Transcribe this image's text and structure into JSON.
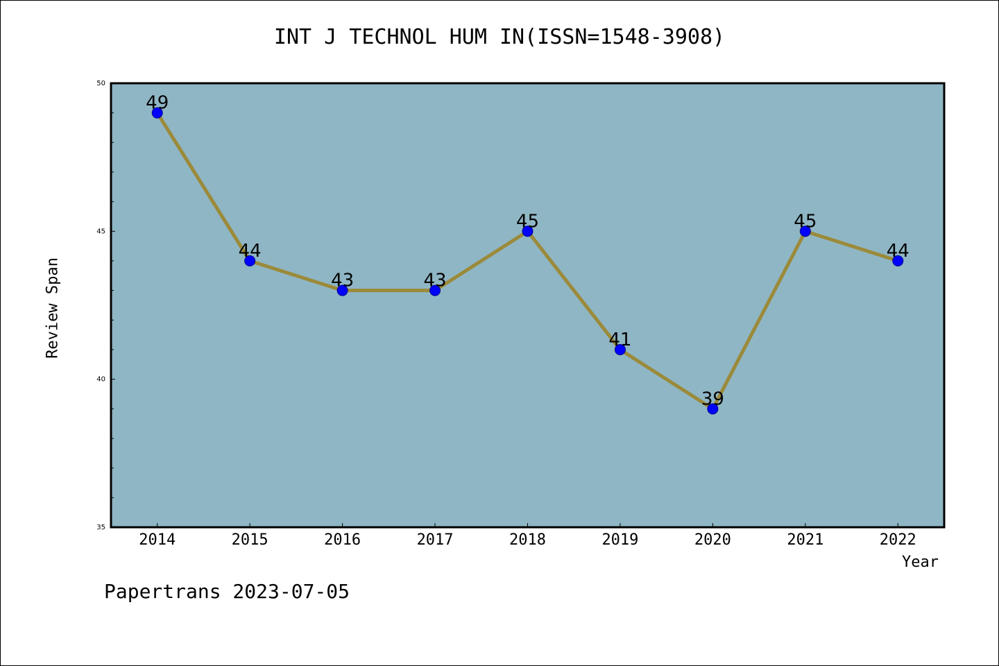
{
  "chart_data": {
    "type": "line",
    "title": "INT J TECHNOL HUM IN(ISSN=1548-3908)",
    "xlabel": "Year",
    "ylabel": "Review Span",
    "categories": [
      "2014",
      "2015",
      "2016",
      "2017",
      "2018",
      "2019",
      "2020",
      "2021",
      "2022"
    ],
    "series": [
      {
        "values": [
          49,
          44,
          43,
          43,
          45,
          41,
          39,
          45,
          44
        ]
      }
    ],
    "ylim": [
      35,
      50
    ],
    "yticks": [
      35,
      40,
      45,
      50
    ],
    "grid": false,
    "data_labels": true,
    "colors": {
      "plot_background": "#8fb6c4",
      "line": "#9b8a3a",
      "marker": "#0000ff",
      "marker_edge": "#00008b",
      "axis": "#000000"
    }
  },
  "footer": "Papertrans 2023-07-05"
}
